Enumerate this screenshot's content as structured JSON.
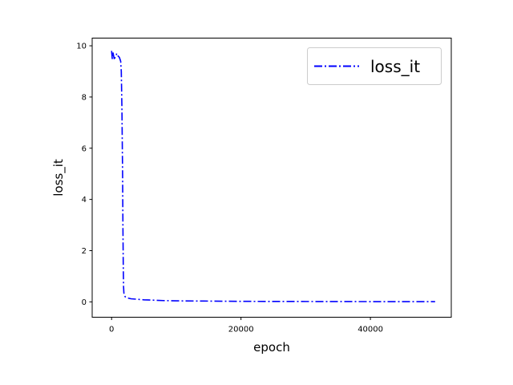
{
  "chart_data": {
    "type": "line",
    "title": "",
    "xlabel": "epoch",
    "ylabel": "loss_it",
    "xlim": [
      -3000,
      52500
    ],
    "ylim": [
      -0.6,
      10.3
    ],
    "xticks": [
      0,
      20000,
      40000
    ],
    "xtick_labels": [
      "0",
      "20000",
      "40000"
    ],
    "yticks": [
      0,
      2,
      4,
      6,
      8,
      10
    ],
    "ytick_labels": [
      "0",
      "2",
      "4",
      "6",
      "8",
      "10"
    ],
    "grid": false,
    "legend_position": "top-right",
    "series": [
      {
        "name": "loss_it",
        "color": "#0000ff",
        "line_style": "dash-dot",
        "x": [
          0,
          100,
          200,
          400,
          600,
          800,
          1000,
          1200,
          1400,
          1500,
          1600,
          1700,
          1750,
          1800,
          1850,
          1900,
          2000,
          2100,
          2200,
          2500,
          3000,
          4000,
          5000,
          6000,
          8000,
          10000,
          15000,
          20000,
          30000,
          40000,
          50000
        ],
        "y": [
          9.8,
          9.5,
          9.75,
          9.5,
          9.55,
          9.7,
          9.6,
          9.55,
          9.4,
          9.0,
          7.5,
          5.0,
          3.0,
          1.5,
          0.6,
          0.35,
          0.25,
          0.2,
          0.18,
          0.15,
          0.12,
          0.1,
          0.08,
          0.07,
          0.05,
          0.04,
          0.03,
          0.02,
          0.015,
          0.01,
          0.01
        ]
      }
    ]
  }
}
